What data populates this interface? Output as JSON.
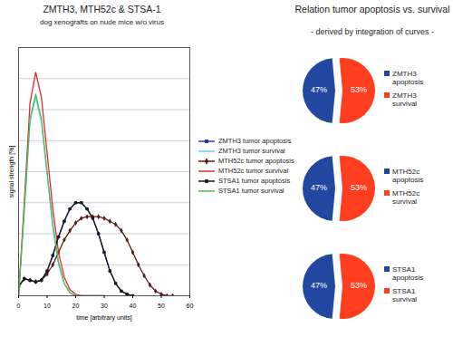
{
  "chart_data": [
    {
      "type": "line",
      "title": "ZMTH3, MTH52c & STSA-1",
      "subtitle": "dog xenografts on nude mice w/o virus",
      "x_label": "time [arbitrary units]",
      "y_label": "signal strength [%]",
      "x": [
        0,
        2,
        4,
        6,
        8,
        10,
        12,
        14,
        16,
        18,
        20,
        22,
        24,
        26,
        28,
        30,
        32,
        34,
        36,
        38,
        40,
        42,
        44,
        46,
        48,
        50,
        52,
        54,
        56
      ],
      "series": [
        {
          "name": "ZMTH3 tumor apoptosis",
          "color": "#1f3f9f",
          "marker": "square",
          "values": [
            0.03,
            0.055,
            0.05,
            0.045,
            0.05,
            0.08,
            0.13,
            0.19,
            0.24,
            0.28,
            0.3,
            0.3,
            0.28,
            0.25,
            0.2,
            0.14,
            0.08,
            0.04,
            0.015,
            0.005,
            0,
            null,
            null,
            null,
            null,
            null,
            null,
            null,
            null
          ]
        },
        {
          "name": "ZMTH3 tumor survival",
          "color": "#66ccff",
          "values": [
            0,
            0.27,
            0.56,
            0.64,
            0.56,
            0.39,
            0.22,
            0.1,
            0.04,
            0.01,
            0,
            0,
            0,
            0,
            0,
            0,
            null,
            null,
            null,
            null,
            null,
            null,
            null,
            null,
            null,
            null,
            null,
            null,
            null
          ]
        },
        {
          "name": "MTH52c tumor apoptosis",
          "color": "#5a1a1a",
          "marker": "diamond",
          "values": [
            0.03,
            0.055,
            0.05,
            0.045,
            0.05,
            0.07,
            0.1,
            0.14,
            0.18,
            0.21,
            0.235,
            0.25,
            0.255,
            0.255,
            0.255,
            0.25,
            0.24,
            0.23,
            0.21,
            0.18,
            0.14,
            0.1,
            0.065,
            0.035,
            0.015,
            0.005,
            0,
            0,
            null
          ]
        },
        {
          "name": "MTH52c tumor survival",
          "color": "#e8262b",
          "values": [
            0,
            0.3,
            0.62,
            0.72,
            0.64,
            0.46,
            0.28,
            0.14,
            0.06,
            0.02,
            0.005,
            0,
            0,
            0,
            0,
            0,
            null,
            null,
            null,
            null,
            null,
            null,
            null,
            null,
            null,
            null,
            null,
            null,
            null
          ]
        },
        {
          "name": "STSA1 tumor apoptosis",
          "color": "#1a1a1a",
          "marker": "circle",
          "values": [
            0.03,
            0.055,
            0.05,
            0.045,
            0.05,
            0.08,
            0.13,
            0.19,
            0.24,
            0.28,
            0.3,
            0.3,
            0.28,
            0.25,
            0.2,
            0.14,
            0.08,
            0.04,
            0.015,
            0.005,
            0,
            null,
            null,
            null,
            null,
            null,
            null,
            null,
            null
          ]
        },
        {
          "name": "STSA1 tumor survival",
          "color": "#4dc04d",
          "values": [
            0,
            0.28,
            0.57,
            0.65,
            0.57,
            0.4,
            0.23,
            0.11,
            0.04,
            0.01,
            0,
            0,
            0,
            0,
            0,
            0,
            null,
            null,
            null,
            null,
            null,
            null,
            null,
            null,
            null,
            null,
            null,
            null,
            null
          ]
        }
      ],
      "xlim": [
        0,
        60
      ],
      "xticks": [
        0,
        10,
        20,
        30,
        40,
        50,
        60
      ],
      "ylim": [
        0,
        0.8
      ],
      "yticks": [
        0,
        0.1,
        0.2,
        0.3,
        0.4,
        0.5,
        0.6,
        0.7,
        0.8
      ],
      "tick_labels": "x",
      "grid": true,
      "legend": "right"
    },
    {
      "type": "pie",
      "title": "Relation tumor apoptosis vs. survival",
      "subtitle": "- derived by integration of curves -",
      "categories": [
        "ZMTH3 apoptosis",
        "ZMTH3 survival"
      ],
      "values": [
        47,
        53
      ],
      "value_labels": [
        "47%",
        "53%"
      ],
      "colors": [
        "#2147a0",
        "#ff3d1f"
      ],
      "data_labels": true,
      "legend": "right"
    },
    {
      "type": "pie",
      "categories": [
        "MTH52c apoptosis",
        "MTH52c survival"
      ],
      "values": [
        47,
        53
      ],
      "value_labels": [
        "47%",
        "53%"
      ],
      "colors": [
        "#2147a0",
        "#ff3d1f"
      ],
      "data_labels": true,
      "legend": "right"
    },
    {
      "type": "pie",
      "categories": [
        "STSA1 apoptosis",
        "STSA1 survival"
      ],
      "values": [
        47,
        53
      ],
      "value_labels": [
        "47%",
        "53%"
      ],
      "colors": [
        "#2147a0",
        "#ff3d1f"
      ],
      "data_labels": true,
      "legend": "right"
    }
  ]
}
